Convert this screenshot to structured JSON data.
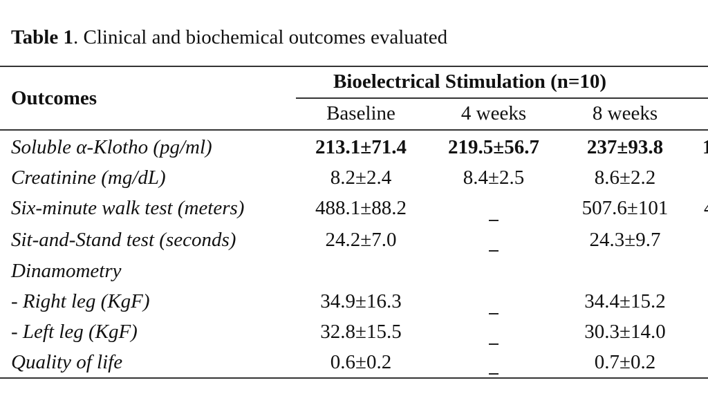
{
  "caption": {
    "label": "Table 1",
    "text": ". Clinical and biochemical outcomes evaluated"
  },
  "header": {
    "outcomes": "Outcomes",
    "group": "Bioelectrical Stimulation (n=10)",
    "columns": [
      "Baseline",
      "4 weeks",
      "8 weeks"
    ]
  },
  "rows": [
    {
      "label": "Soluble α-Klotho (pg/ml)",
      "values": [
        "213.1±71.4",
        "219.5±56.7",
        "237±93.8"
      ],
      "bold": true
    },
    {
      "label": "Creatinine (mg/dL)",
      "values": [
        "8.2±2.4",
        "8.4±2.5",
        "8.6±2.2"
      ]
    },
    {
      "label": "Six-minute walk test (meters)",
      "values": [
        "488.1±88.2",
        "_",
        "507.6±101"
      ]
    },
    {
      "label": "Sit-and-Stand test (seconds)",
      "values": [
        "24.2±7.0",
        "_",
        "24.3±9.7"
      ]
    },
    {
      "label": "Dinamometry",
      "values": [
        "",
        "",
        ""
      ]
    },
    {
      "label": "- Right leg (KgF)",
      "values": [
        "34.9±16.3",
        "_",
        "34.4±15.2"
      ]
    },
    {
      "label": "- Left leg (KgF)",
      "values": [
        "32.8±15.5",
        "_",
        "30.3±14.0"
      ]
    },
    {
      "label": "Quality of life",
      "values": [
        "0.6±0.2",
        "_",
        "0.7±0.2"
      ]
    }
  ],
  "cut_off_fragments": [
    "1",
    "4"
  ]
}
